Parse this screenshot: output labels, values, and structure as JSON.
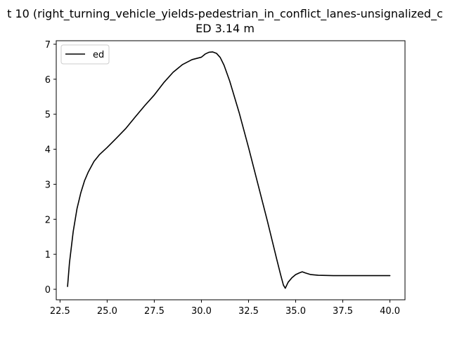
{
  "chart_data": {
    "type": "line",
    "title_line1": "t 10 (right_turning_vehicle_yields-pedestrian_in_conflict_lanes-unsignalized_c",
    "title_line2": "ED 3.14 m",
    "xlabel": "",
    "ylabel": "",
    "xlim": [
      22.3,
      40.8
    ],
    "ylim": [
      -0.3,
      7.1
    ],
    "xticks": [
      22.5,
      25.0,
      27.5,
      30.0,
      32.5,
      35.0,
      37.5,
      40.0
    ],
    "xtick_labels": [
      "22.5",
      "25.0",
      "27.5",
      "30.0",
      "32.5",
      "35.0",
      "37.5",
      "40.0"
    ],
    "yticks": [
      0,
      1,
      2,
      3,
      4,
      5,
      6,
      7
    ],
    "ytick_labels": [
      "0",
      "1",
      "2",
      "3",
      "4",
      "5",
      "6",
      "7"
    ],
    "grid": false,
    "legend_position": "upper-left",
    "series": [
      {
        "name": "ed",
        "color": "#000000",
        "x": [
          22.9,
          23.0,
          23.2,
          23.4,
          23.6,
          23.8,
          24.0,
          24.3,
          24.6,
          25.0,
          25.5,
          26.0,
          26.5,
          27.0,
          27.5,
          28.0,
          28.5,
          29.0,
          29.5,
          30.0,
          30.2,
          30.4,
          30.6,
          30.8,
          31.0,
          31.2,
          31.5,
          32.0,
          32.5,
          33.0,
          33.5,
          34.0,
          34.2,
          34.35,
          34.45,
          34.6,
          34.8,
          35.0,
          35.2,
          35.35,
          35.5,
          35.8,
          36.2,
          37.0,
          38.0,
          39.0,
          40.0
        ],
        "y": [
          0.08,
          0.75,
          1.65,
          2.3,
          2.75,
          3.1,
          3.35,
          3.65,
          3.85,
          4.05,
          4.32,
          4.6,
          4.93,
          5.25,
          5.55,
          5.9,
          6.2,
          6.42,
          6.56,
          6.63,
          6.72,
          6.77,
          6.78,
          6.74,
          6.62,
          6.4,
          5.95,
          5.05,
          4.05,
          3.0,
          1.95,
          0.85,
          0.42,
          0.12,
          0.03,
          0.2,
          0.33,
          0.42,
          0.47,
          0.5,
          0.47,
          0.42,
          0.4,
          0.39,
          0.39,
          0.39,
          0.39
        ]
      }
    ]
  }
}
